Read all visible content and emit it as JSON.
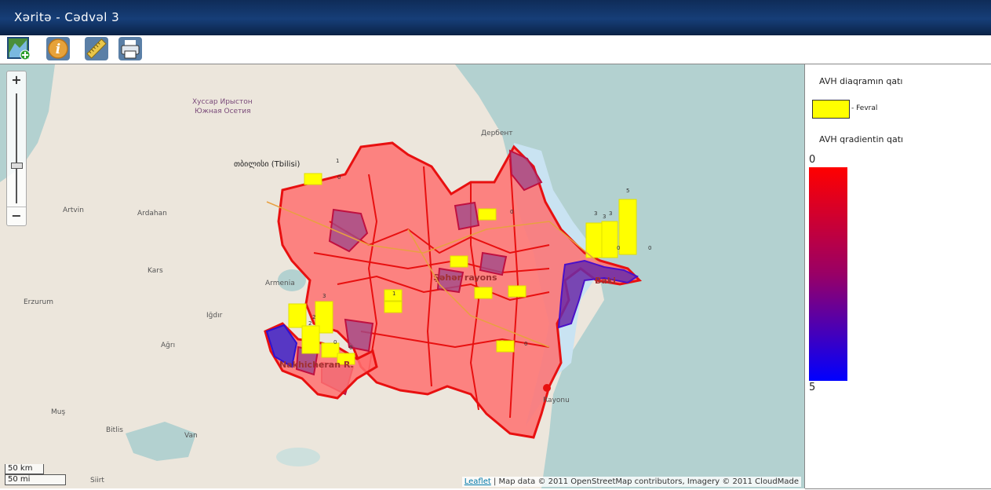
{
  "window": {
    "title": "Xəritə - Cədvəl 3"
  },
  "toolbar": {
    "buttons": [
      {
        "name": "add-layer-button",
        "icon": "map-add-icon"
      },
      {
        "name": "info-button",
        "icon": "info-icon"
      },
      {
        "name": "measure-button",
        "icon": "ruler-icon"
      },
      {
        "name": "print-button",
        "icon": "printer-icon"
      }
    ]
  },
  "map": {
    "zoom_in": "+",
    "zoom_out": "−",
    "scale_km": "50 km",
    "scale_mi": "50 mi",
    "attribution_link": "Leaflet",
    "attribution_text": " | Map data © 2011 OpenStreetMap contributors, Imagery © 2011 CloudMade",
    "labels": [
      "თბილისი (Tbilisi)",
      "Хуссар Ирыстон",
      "Южная Осетия",
      "Дербент",
      "Artvin",
      "Ardahan",
      "Erzurum",
      "Kars",
      "Ağrı",
      "Iğdır",
      "Armenia",
      "Muş",
      "Bitlis",
      "Van",
      "Siirt",
      "Nakhicheran R.",
      "Baki",
      "Rayonu",
      "Şəhər rayons"
    ],
    "chart_values": [
      "0",
      "1",
      "2",
      "3",
      "5"
    ]
  },
  "legend": {
    "chart_layer_label": "AVH diaqramın qatı",
    "chart_series_label": "- Fevral",
    "chart_series_color": "#ffff00",
    "gradient_layer_label": "AVH qradientin qatı",
    "gradient_min": "0",
    "gradient_max": "5",
    "gradient_top_color": "#ff0000",
    "gradient_mid_color": "#990066",
    "gradient_bottom_color": "#0000ff"
  }
}
